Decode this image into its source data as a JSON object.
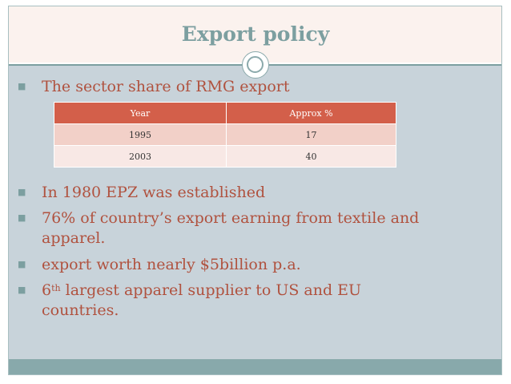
{
  "title": "Export policy",
  "bullets": [
    {
      "text": "The sector share of RMG export"
    },
    {
      "text": "In 1980 EPZ was established"
    },
    {
      "line1": "76% of country’s export earning from textile and",
      "line2": "apparel."
    },
    {
      "text": "export worth nearly $5billion p.a."
    },
    {
      "prefix": "6",
      "sup": "th",
      "line1": " largest apparel supplier to US and EU",
      "line2": "countries."
    }
  ],
  "table": {
    "headers": [
      "Year",
      "Approx %"
    ],
    "rows": [
      [
        "1995",
        "17"
      ],
      [
        "2003",
        "40"
      ]
    ]
  },
  "colors": {
    "accent": "#7c9fa0",
    "body_text": "#b0523f",
    "table_header": "#d35f4a",
    "row_dark": "#f2d0c8",
    "row_light": "#f8e8e5",
    "body_bg": "#c8d3da",
    "title_bg": "#fbf2ee"
  },
  "icons": {
    "bullet": "square-bullet-icon",
    "divider_ornament": "double-circle-ornament-icon"
  }
}
